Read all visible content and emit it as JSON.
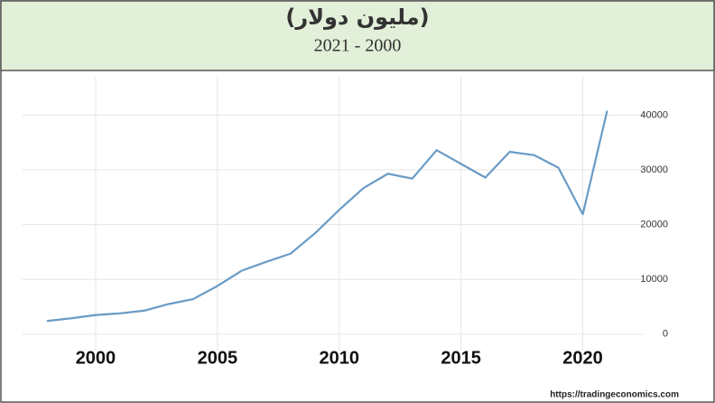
{
  "chart_data": {
    "type": "line",
    "title": "(مليون دولار)",
    "subtitle": "2021 - 2000",
    "x": [
      1998,
      1999,
      2000,
      2001,
      2002,
      2003,
      2004,
      2005,
      2006,
      2007,
      2008,
      2009,
      2010,
      2011,
      2012,
      2013,
      2014,
      2015,
      2016,
      2017,
      2018,
      2019,
      2020,
      2021
    ],
    "series": [
      {
        "color": "#6a9bc6",
        "values": [
          2400,
          2900,
          3500,
          3800,
          4300,
          5500,
          6400,
          8800,
          11600,
          13200,
          14700,
          18400,
          22700,
          26700,
          29300,
          28400,
          33600,
          31100,
          28600,
          33300,
          32700,
          30400,
          21900,
          40800
        ]
      }
    ],
    "xlim": [
      1997,
      2022.5
    ],
    "xticks": [
      2000,
      2005,
      2010,
      2015,
      2020
    ],
    "ylim": [
      -3000,
      47000
    ],
    "yticks": [
      0,
      10000,
      20000,
      30000,
      40000
    ],
    "grid": true,
    "source": "https://tradingeconomics.com"
  }
}
